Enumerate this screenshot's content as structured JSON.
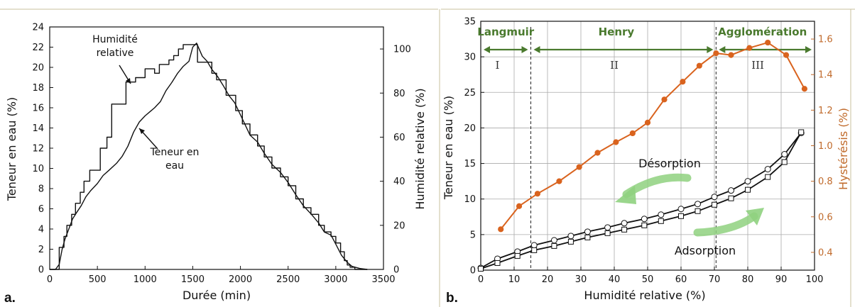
{
  "colors": {
    "green": "#4a7a2e",
    "orange": "#d9631e",
    "orange_axis": "#c06a2b",
    "arrow_green": "#8fd17f",
    "frame": "#c9c19e"
  },
  "chart_data": [
    {
      "panel_label": "a.",
      "type": "line",
      "xlabel": "Durée (min)",
      "ylabel": "Teneur en eau (%)",
      "y2label": "Humidité relative (%)",
      "xlim": [
        0,
        3500
      ],
      "ylim": [
        0,
        24
      ],
      "y2lim": [
        0,
        110
      ],
      "x_ticks": [
        "0",
        "500",
        "1000",
        "1500",
        "2000",
        "2500",
        "3000",
        "3500"
      ],
      "y_ticks": [
        "0",
        "2",
        "4",
        "6",
        "8",
        "10",
        "12",
        "14",
        "16",
        "18",
        "20",
        "22",
        "24"
      ],
      "y2_ticks": [
        "0",
        "20",
        "40",
        "60",
        "80",
        "100"
      ],
      "annotations": [
        {
          "lines": [
            "Humidité",
            "relative"
          ]
        },
        {
          "lines": [
            "Teneur en",
            "eau"
          ]
        }
      ],
      "series": [
        {
          "axis": "right",
          "x": [
            0,
            60,
            100,
            100,
            150,
            150,
            180,
            180,
            230,
            230,
            270,
            270,
            320,
            320,
            360,
            360,
            420,
            420,
            530,
            530,
            600,
            600,
            650,
            650,
            800,
            800,
            900,
            900,
            1000,
            1000,
            1100,
            1100,
            1150,
            1150,
            1250,
            1250,
            1300,
            1300,
            1350,
            1350,
            1400,
            1400,
            1550,
            1550,
            1700,
            1700,
            1750,
            1750,
            1850,
            1850,
            1950,
            1950,
            2020,
            2020,
            2100,
            2100,
            2180,
            2180,
            2250,
            2250,
            2330,
            2330,
            2420,
            2420,
            2500,
            2500,
            2580,
            2580,
            2660,
            2660,
            2740,
            2740,
            2820,
            2820,
            2880,
            2880,
            2950,
            2950,
            3000,
            3000,
            3050,
            3050,
            3090,
            3090,
            3120,
            3120,
            3150,
            3150,
            3200,
            3200,
            3330
          ],
          "y": [
            0,
            0,
            0,
            10,
            10,
            15,
            15,
            20,
            20,
            25,
            25,
            30,
            30,
            35,
            35,
            40,
            40,
            45,
            45,
            55,
            55,
            60,
            60,
            75,
            75,
            85,
            85,
            87,
            87,
            91,
            91,
            89,
            89,
            93,
            93,
            95,
            95,
            97,
            97,
            100,
            100,
            102,
            102,
            94,
            94,
            89,
            89,
            86,
            86,
            79,
            79,
            72,
            72,
            66,
            66,
            61,
            61,
            56,
            56,
            51,
            51,
            46,
            46,
            42,
            42,
            38,
            38,
            32,
            32,
            28,
            28,
            25,
            25,
            20,
            20,
            17,
            17,
            15,
            15,
            12,
            12,
            8,
            8,
            4,
            4,
            2,
            2,
            1,
            1,
            0,
            0
          ]
        },
        {
          "axis": "left",
          "x": [
            0,
            60,
            100,
            130,
            160,
            200,
            240,
            280,
            330,
            380,
            430,
            500,
            560,
            620,
            700,
            760,
            820,
            880,
            940,
            1000,
            1050,
            1100,
            1160,
            1220,
            1280,
            1340,
            1400,
            1460,
            1500,
            1540,
            1600,
            1650,
            1700,
            1760,
            1820,
            1880,
            1940,
            2000,
            2050,
            2100,
            2180,
            2250,
            2330,
            2420,
            2500,
            2580,
            2660,
            2740,
            2820,
            2880,
            2950,
            3000,
            3060,
            3120,
            3170,
            3250,
            3330
          ],
          "y": [
            0,
            0,
            0.5,
            2,
            3,
            4,
            5,
            5.6,
            6.3,
            7.2,
            7.8,
            8.5,
            9.3,
            9.8,
            10.5,
            11.2,
            12.2,
            13.6,
            14.6,
            15.2,
            15.6,
            16.0,
            16.6,
            17.7,
            18.5,
            19.4,
            20.1,
            20.6,
            22.0,
            22.4,
            21.1,
            20.6,
            19.8,
            19.1,
            18.2,
            17.2,
            16.5,
            15.3,
            14.3,
            13.3,
            12.6,
            11.5,
            10.4,
            9.6,
            8.6,
            7.4,
            6.3,
            5.5,
            4.6,
            3.7,
            3.4,
            2.5,
            1.4,
            0.7,
            0.3,
            0.1,
            0
          ]
        }
      ]
    },
    {
      "panel_label": "b.",
      "type": "line",
      "xlabel": "Humidité relative (%)",
      "ylabel": "Teneur en eau (%)",
      "y2label": "Hystérésis (%)",
      "xlim": [
        0,
        100
      ],
      "ylim": [
        0,
        35
      ],
      "y2lim": [
        0.3,
        1.7
      ],
      "x_ticks": [
        "0",
        "10",
        "20",
        "30",
        "40",
        "50",
        "60",
        "70",
        "80",
        "90",
        "100"
      ],
      "y_ticks": [
        "0",
        "5",
        "10",
        "15",
        "20",
        "25",
        "30",
        "35"
      ],
      "y2_ticks": [
        "0.4",
        "0.6",
        "0.8",
        "1.0",
        "1.2",
        "1.4",
        "1.6"
      ],
      "regions": [
        {
          "label": "Langmuir",
          "from": 0,
          "to": 15,
          "roman": "I"
        },
        {
          "label": "Henry",
          "from": 15,
          "to": 70,
          "roman": "II"
        },
        {
          "label": "Agglomération",
          "from": 70,
          "to": 100,
          "roman": "III"
        }
      ],
      "boundaries": [
        15,
        70.5
      ],
      "annotations": [
        "Désorption",
        "Adsorption"
      ],
      "series": [
        {
          "marker": "circle",
          "axis": "left",
          "x": [
            0,
            5,
            11,
            16,
            22,
            27,
            32,
            38,
            43,
            49,
            54,
            60,
            65,
            70,
            75,
            80,
            86,
            91,
            96
          ],
          "y": [
            0.3,
            1.6,
            2.6,
            3.5,
            4.2,
            4.8,
            5.4,
            6.0,
            6.6,
            7.2,
            7.8,
            8.6,
            9.3,
            10.3,
            11.2,
            12.5,
            14.2,
            16.3,
            19.3
          ]
        },
        {
          "marker": "square",
          "axis": "left",
          "x": [
            0,
            5,
            11,
            16,
            22,
            27,
            32,
            38,
            43,
            49,
            54,
            60,
            65,
            70,
            75,
            80,
            86,
            91,
            96
          ],
          "y": [
            0.2,
            1.0,
            2.0,
            2.8,
            3.4,
            4.0,
            4.6,
            5.2,
            5.7,
            6.3,
            6.9,
            7.6,
            8.3,
            9.2,
            10.1,
            11.3,
            13.1,
            15.2,
            19.4
          ]
        },
        {
          "marker": "dot",
          "axis": "right",
          "color": "#d9631e",
          "x": [
            6,
            11.5,
            17,
            23.5,
            29.5,
            35,
            40.5,
            45.5,
            50,
            55,
            60.5,
            65.5,
            70.5,
            75,
            80.5,
            86,
            91.5,
            97
          ],
          "y": [
            0.53,
            0.66,
            0.73,
            0.8,
            0.88,
            0.96,
            1.02,
            1.07,
            1.13,
            1.26,
            1.36,
            1.45,
            1.52,
            1.51,
            1.55,
            1.58,
            1.51,
            1.32
          ]
        }
      ]
    }
  ]
}
